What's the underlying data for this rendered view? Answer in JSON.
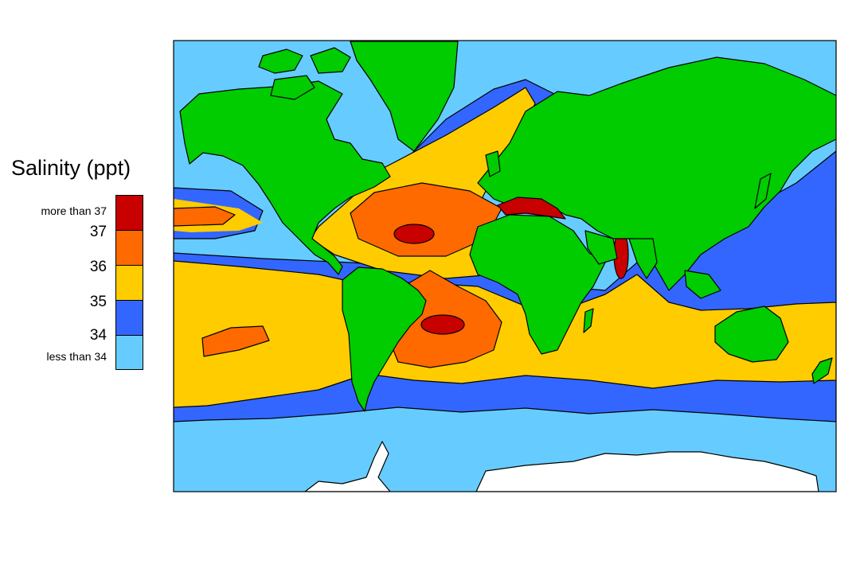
{
  "legend": {
    "title": "Salinity (ppt)",
    "labels": [
      "more than 37",
      "37",
      "36",
      "35",
      "34",
      "less than 34"
    ],
    "colors": {
      "more_than_37": "#c80000",
      "c36_37": "#ff6a00",
      "c35_36": "#ffcc00",
      "c34_35": "#3366ff",
      "less_than_34": "#66ccff"
    }
  },
  "map": {
    "land_color": "#00cc00",
    "ice_color": "#ffffff"
  }
}
